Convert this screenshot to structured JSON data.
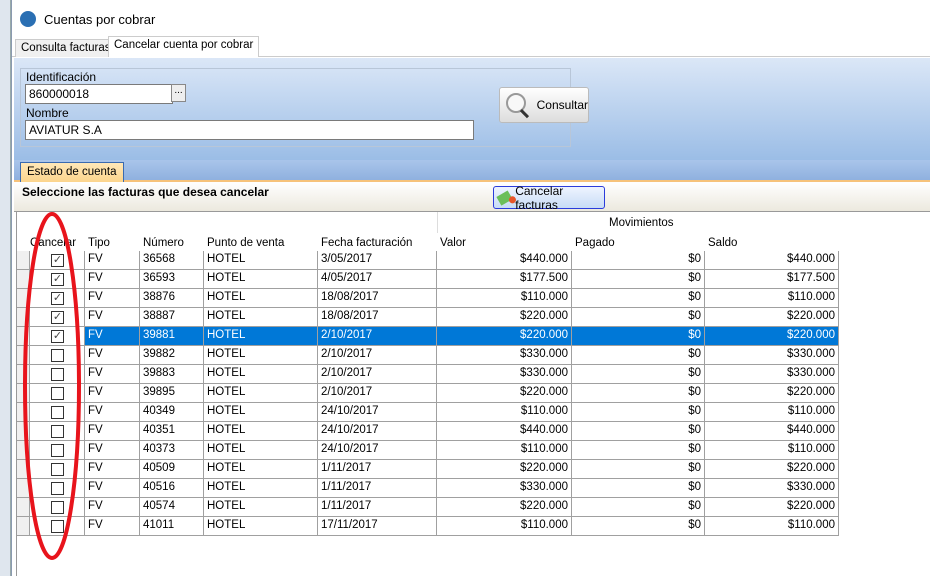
{
  "window": {
    "title": "Cuentas por cobrar"
  },
  "tabs": [
    {
      "label": "Consulta facturas"
    },
    {
      "label": "Cancelar cuenta por cobrar"
    }
  ],
  "form": {
    "id_label": "Identificación",
    "id_value": "860000018",
    "browse_label": "...",
    "name_label": "Nombre",
    "name_value": "AVIATUR S.A",
    "consultar_label": "Consultar"
  },
  "subtab": {
    "label": "Estado de cuenta"
  },
  "selection": {
    "prompt": "Seleccione las facturas que desea cancelar",
    "cancel_button": "Cancelar facturas"
  },
  "grid": {
    "group_header": "Movimientos",
    "columns": [
      "Cancelar",
      "Tipo",
      "Número",
      "Punto de venta",
      "Fecha facturación",
      "Valor",
      "Pagado",
      "Saldo"
    ],
    "selected_row": 4,
    "rows": [
      {
        "checked": true,
        "tipo": "FV",
        "numero": "36568",
        "punto": "HOTEL",
        "fecha": "3/05/2017",
        "valor": "$440.000",
        "pagado": "$0",
        "saldo": "$440.000"
      },
      {
        "checked": true,
        "tipo": "FV",
        "numero": "36593",
        "punto": "HOTEL",
        "fecha": "4/05/2017",
        "valor": "$177.500",
        "pagado": "$0",
        "saldo": "$177.500"
      },
      {
        "checked": true,
        "tipo": "FV",
        "numero": "38876",
        "punto": "HOTEL",
        "fecha": "18/08/2017",
        "valor": "$110.000",
        "pagado": "$0",
        "saldo": "$110.000"
      },
      {
        "checked": true,
        "tipo": "FV",
        "numero": "38887",
        "punto": "HOTEL",
        "fecha": "18/08/2017",
        "valor": "$220.000",
        "pagado": "$0",
        "saldo": "$220.000"
      },
      {
        "checked": true,
        "tipo": "FV",
        "numero": "39881",
        "punto": "HOTEL",
        "fecha": "2/10/2017",
        "valor": "$220.000",
        "pagado": "$0",
        "saldo": "$220.000"
      },
      {
        "checked": false,
        "tipo": "FV",
        "numero": "39882",
        "punto": "HOTEL",
        "fecha": "2/10/2017",
        "valor": "$330.000",
        "pagado": "$0",
        "saldo": "$330.000"
      },
      {
        "checked": false,
        "tipo": "FV",
        "numero": "39883",
        "punto": "HOTEL",
        "fecha": "2/10/2017",
        "valor": "$330.000",
        "pagado": "$0",
        "saldo": "$330.000"
      },
      {
        "checked": false,
        "tipo": "FV",
        "numero": "39895",
        "punto": "HOTEL",
        "fecha": "2/10/2017",
        "valor": "$220.000",
        "pagado": "$0",
        "saldo": "$220.000"
      },
      {
        "checked": false,
        "tipo": "FV",
        "numero": "40349",
        "punto": "HOTEL",
        "fecha": "24/10/2017",
        "valor": "$110.000",
        "pagado": "$0",
        "saldo": "$110.000"
      },
      {
        "checked": false,
        "tipo": "FV",
        "numero": "40351",
        "punto": "HOTEL",
        "fecha": "24/10/2017",
        "valor": "$440.000",
        "pagado": "$0",
        "saldo": "$440.000"
      },
      {
        "checked": false,
        "tipo": "FV",
        "numero": "40373",
        "punto": "HOTEL",
        "fecha": "24/10/2017",
        "valor": "$110.000",
        "pagado": "$0",
        "saldo": "$110.000"
      },
      {
        "checked": false,
        "tipo": "FV",
        "numero": "40509",
        "punto": "HOTEL",
        "fecha": "1/11/2017",
        "valor": "$220.000",
        "pagado": "$0",
        "saldo": "$220.000"
      },
      {
        "checked": false,
        "tipo": "FV",
        "numero": "40516",
        "punto": "HOTEL",
        "fecha": "1/11/2017",
        "valor": "$330.000",
        "pagado": "$0",
        "saldo": "$330.000"
      },
      {
        "checked": false,
        "tipo": "FV",
        "numero": "40574",
        "punto": "HOTEL",
        "fecha": "1/11/2017",
        "valor": "$220.000",
        "pagado": "$0",
        "saldo": "$220.000"
      },
      {
        "checked": false,
        "tipo": "FV",
        "numero": "41011",
        "punto": "HOTEL",
        "fecha": "17/11/2017",
        "valor": "$110.000",
        "pagado": "$0",
        "saldo": "$110.000"
      }
    ]
  },
  "annotation": {
    "color": "#e8141c"
  }
}
